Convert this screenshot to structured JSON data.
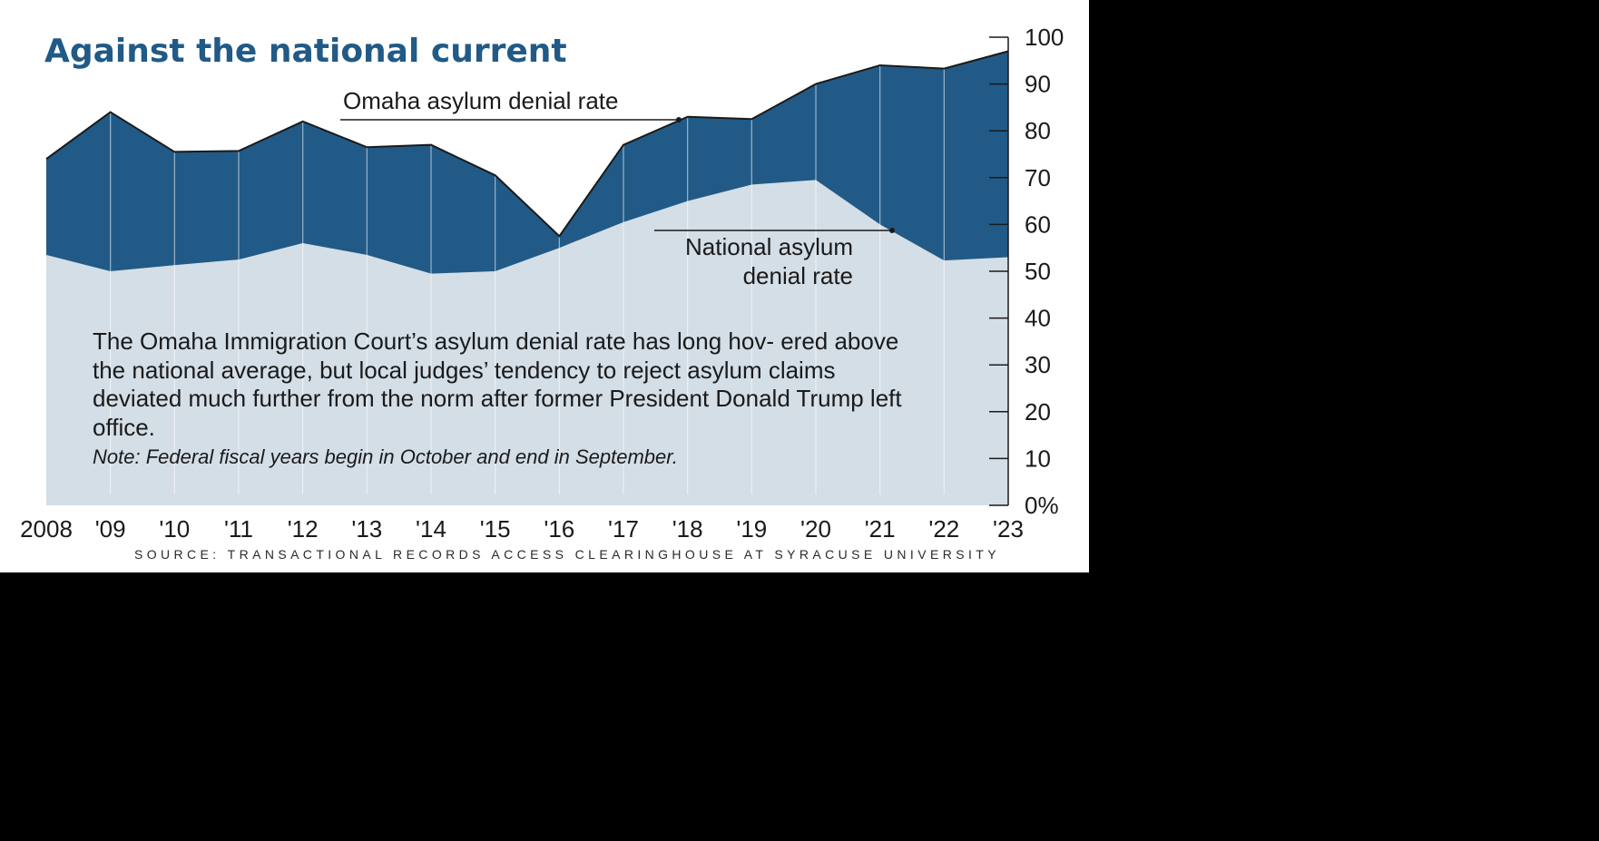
{
  "chart_data": {
    "type": "area",
    "title": "Against the national current",
    "categories": [
      "2008",
      "'09",
      "'10",
      "'11",
      "'12",
      "'13",
      "'14",
      "'15",
      "'16",
      "'17",
      "'18",
      "'19",
      "'20",
      "'21",
      "'22",
      "'23"
    ],
    "series": [
      {
        "name": "Omaha asylum denial rate",
        "color": "#215a86",
        "values": [
          74,
          84,
          75.5,
          75.7,
          82,
          76.5,
          77,
          70.5,
          57.5,
          77,
          83,
          82.5,
          90,
          94,
          93.3,
          97
        ]
      },
      {
        "name": "National asylum denial rate",
        "color": "#d3dee7",
        "values": [
          53.5,
          50,
          51.3,
          52.5,
          56,
          53.5,
          49.5,
          50,
          55,
          60.5,
          65,
          68.5,
          69.5,
          60,
          52.3,
          53
        ]
      }
    ],
    "y_ticks": [
      "100",
      "90",
      "80",
      "70",
      "60",
      "50",
      "40",
      "30",
      "20",
      "10",
      "0%"
    ],
    "ylim": [
      0,
      100
    ],
    "y_axis_side": "right",
    "grid": false,
    "annotations": {
      "omaha_label": "Omaha asylum denial rate",
      "national_label_line1": "National asylum",
      "national_label_line2": "denial rate"
    },
    "body_text": "The Omaha Immigration Court’s asylum denial rate has long hov- ered above the national average, but local judges’ tendency to reject asylum claims deviated much further from the norm after former President Donald Trump left office.",
    "note": "Note: Federal fiscal years begin in October and end in September.",
    "source": "SOURCE: TRANSACTIONAL RECORDS ACCESS CLEARINGHOUSE AT SYRACUSE UNIVERSITY"
  }
}
